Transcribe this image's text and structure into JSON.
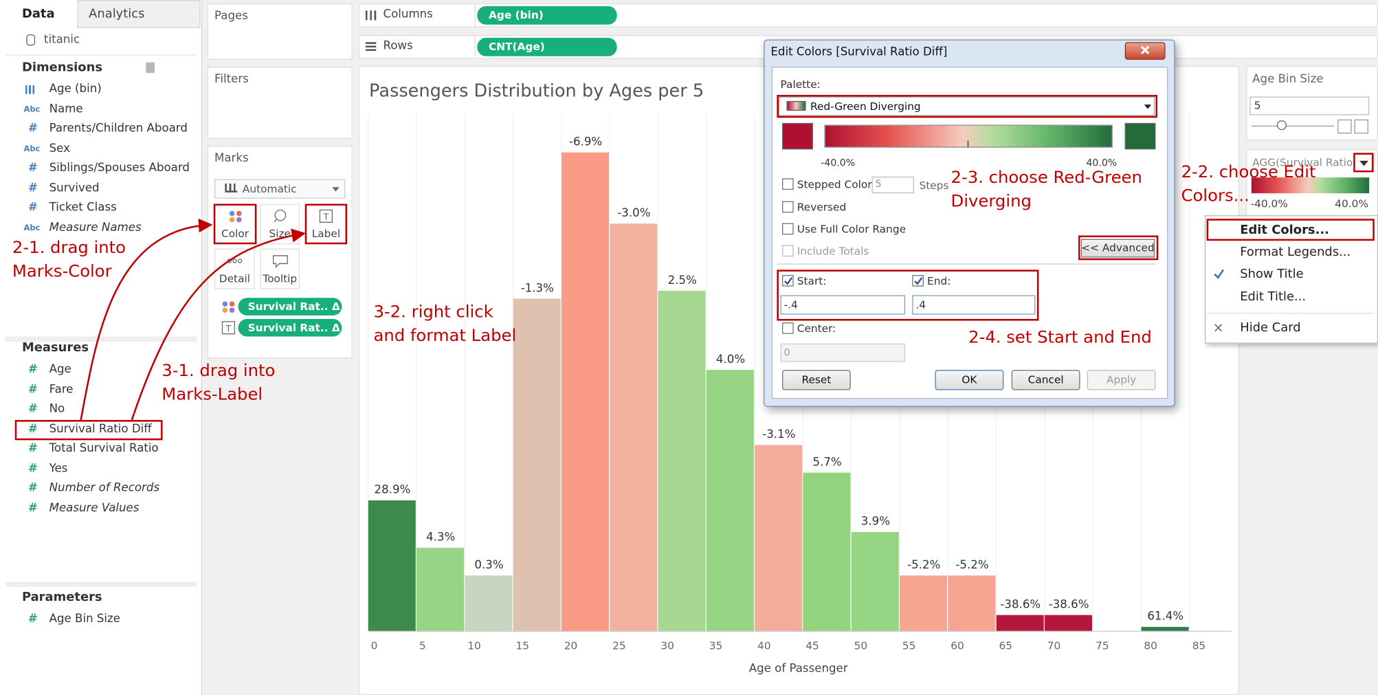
{
  "left_pane": {
    "tabs": [
      "Data",
      "Analytics"
    ],
    "datasource": "titanic",
    "dimensions": {
      "title": "Dimensions",
      "items": [
        {
          "label": "Age (bin)"
        },
        {
          "icon": "Abc",
          "label": "Name"
        },
        {
          "icon": "#",
          "label": "Parents/Children Aboard"
        },
        {
          "icon": "Abc",
          "label": "Sex"
        },
        {
          "icon": "#",
          "label": "Siblings/Spouses Aboard"
        },
        {
          "icon": "#",
          "label": "Survived"
        },
        {
          "icon": "#",
          "label": "Ticket Class"
        },
        {
          "icon": "Abc",
          "label": "Measure Names",
          "italic": true
        }
      ]
    },
    "measures": {
      "title": "Measures",
      "items": [
        {
          "icon": "#",
          "label": "Age"
        },
        {
          "icon": "#",
          "label": "Fare"
        },
        {
          "icon": "#",
          "label": "No"
        },
        {
          "icon": "#",
          "label": "Survival Ratio Diff"
        },
        {
          "icon": "#",
          "label": "Total Survival Ratio"
        },
        {
          "icon": "#",
          "label": "Yes"
        },
        {
          "icon": "#",
          "label": "Number of Records",
          "italic": true
        },
        {
          "icon": "#",
          "label": "Measure Values",
          "italic": true
        }
      ]
    },
    "parameters": {
      "title": "Parameters",
      "items": [
        {
          "icon": "#",
          "label": "Age Bin Size"
        }
      ]
    }
  },
  "shelves": {
    "pages": "Pages",
    "filters": "Filters",
    "columns": {
      "label": "Columns",
      "pill": "Age (bin)"
    },
    "rows": {
      "label": "Rows",
      "pill": "CNT(Age)"
    }
  },
  "marks": {
    "title": "Marks",
    "type": "Automatic",
    "buttons": [
      "Color",
      "Size",
      "Label",
      "Detail",
      "Tooltip"
    ],
    "pills": [
      "Survival Rat.. Δ",
      "Survival Rat.. Δ"
    ]
  },
  "chart_data": {
    "type": "histogram",
    "title": "Passengers Distribution by Ages per 5",
    "x_label": "Age of Passenger",
    "bins": [
      0,
      5,
      10,
      15,
      20,
      25,
      30,
      35,
      40,
      45,
      50,
      55,
      60,
      65,
      70,
      75,
      80,
      85
    ],
    "values": [
      33,
      21,
      14,
      84,
      121,
      103,
      86,
      66,
      47,
      40,
      25,
      14,
      14,
      4,
      4,
      null,
      1
    ],
    "colors": [
      "#3c8b4a",
      "#98d486",
      "#c8d5bf",
      "#dfc1b0",
      "#f99b85",
      "#f2b09f",
      "#a7d892",
      "#98d486",
      "#f4ac9b",
      "#92d47d",
      "#96d583",
      "#f7a493",
      "#f7a493",
      "#b5183a",
      "#b5183a",
      null,
      "#2e7d46"
    ],
    "survival_ratio_diff": {
      "values": [
        28.9,
        4.3,
        0.3,
        -1.3,
        -6.9,
        -3.0,
        2.5,
        4.0,
        -3.1,
        5.7,
        3.9,
        -5.2,
        -5.2,
        -38.6,
        -38.6,
        null,
        61.4
      ],
      "value_labels": [
        "28.9%",
        "4.3%",
        "0.3%",
        "-1.3%",
        "-6.9%",
        "-3.0%",
        "2.5%",
        "4.0%",
        "-3.1%",
        "5.7%",
        "3.9%",
        "-5.2%",
        "-5.2%",
        "-38.6%",
        "-38.6%",
        null,
        "61.4%"
      ]
    },
    "xlim": [
      0,
      89.4
    ],
    "xticks": [
      0,
      5,
      10,
      15,
      20,
      25,
      30,
      35,
      40,
      45,
      50,
      55,
      60,
      65,
      70,
      75,
      80,
      85
    ],
    "ylim": [
      0,
      130
    ],
    "grid": true
  },
  "parameter_card": {
    "title": "Age Bin Size",
    "value": "5"
  },
  "legend_card": {
    "title": "AGG(Survival Ratio",
    "min_label": "-40.0%",
    "max_label": "40.0%"
  },
  "context_menu": {
    "items": [
      {
        "label": "Edit Colors..."
      },
      {
        "label": "Format Legends..."
      },
      {
        "label": "Show Title",
        "checked": true
      },
      {
        "label": "Edit Title..."
      },
      {
        "label": "Hide Card",
        "icon": "×"
      }
    ]
  },
  "dialog": {
    "title": "Edit Colors [Survival Ratio Diff]",
    "palette_label": "Palette:",
    "palette": "Red-Green Diverging",
    "range_min": "-40.0%",
    "range_max": "40.0%",
    "stepped_color": "Stepped Color",
    "steps_value": "5",
    "steps_label": "Steps",
    "reversed": "Reversed",
    "full_range": "Use Full Color Range",
    "include_totals": "Include Totals",
    "advanced": "<< Advanced",
    "start_label": "Start:",
    "start_value": "-.4",
    "end_label": "End:",
    "end_value": ".4",
    "center_label": "Center:",
    "center_value": "0",
    "buttons": [
      "Reset",
      "OK",
      "Cancel",
      "Apply"
    ]
  },
  "annotations": [
    {
      "lines": [
        "2-1. drag into",
        "Marks-Color"
      ]
    },
    {
      "lines": [
        "3-1. drag into",
        "Marks-Label"
      ]
    },
    {
      "lines": [
        "3-2. right click",
        "and format Label"
      ]
    },
    {
      "lines": [
        "2-3. choose Red-Green",
        "Diverging"
      ]
    },
    {
      "lines": [
        "2-2. choose Edit",
        "Colors..."
      ]
    },
    {
      "lines": [
        "2-4. set Start and End"
      ]
    }
  ]
}
